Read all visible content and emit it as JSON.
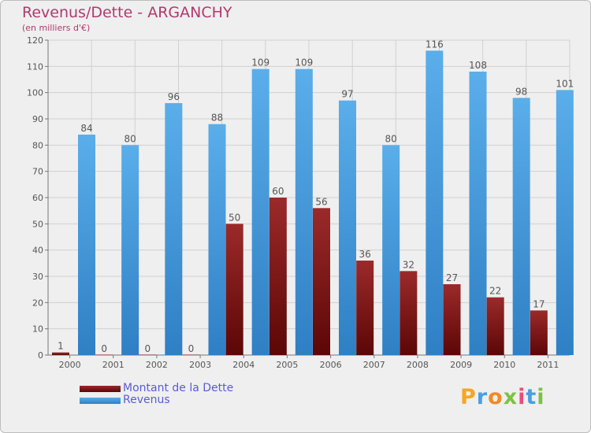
{
  "header": {
    "title": "Revenus/Dette - ARGANCHY",
    "subtitle": "(en milliers d'€)"
  },
  "legend": {
    "items": [
      {
        "label": "Montant de la Dette",
        "color": "#7a0e0e"
      },
      {
        "label": "Revenus",
        "color": "#4a9fe0"
      }
    ]
  },
  "logo": {
    "text": "Proxiti"
  },
  "colors": {
    "debt": "#7a0e0e",
    "revenue": "#4a9fe0",
    "label": "#555555",
    "grid": "#d0d0d0",
    "background": "#efefef"
  },
  "chart_data": {
    "type": "bar",
    "title": "Revenus/Dette - ARGANCHY",
    "subtitle": "(en milliers d'€)",
    "categories": [
      "2000",
      "2001",
      "2002",
      "2003",
      "2004",
      "2005",
      "2006",
      "2007",
      "2008",
      "2009",
      "2010",
      "2011"
    ],
    "series": [
      {
        "name": "Montant de la Dette",
        "values": [
          1,
          0,
          0,
          0,
          50,
          60,
          56,
          36,
          32,
          27,
          22,
          17
        ]
      },
      {
        "name": "Revenus",
        "values": [
          84,
          80,
          96,
          88,
          109,
          109,
          97,
          80,
          116,
          108,
          98,
          101
        ]
      }
    ],
    "ylim": [
      0,
      120
    ],
    "yticks": [
      0,
      10,
      20,
      30,
      40,
      50,
      60,
      70,
      80,
      90,
      100,
      110,
      120
    ],
    "grid": true,
    "legend_position": "bottom-left"
  }
}
